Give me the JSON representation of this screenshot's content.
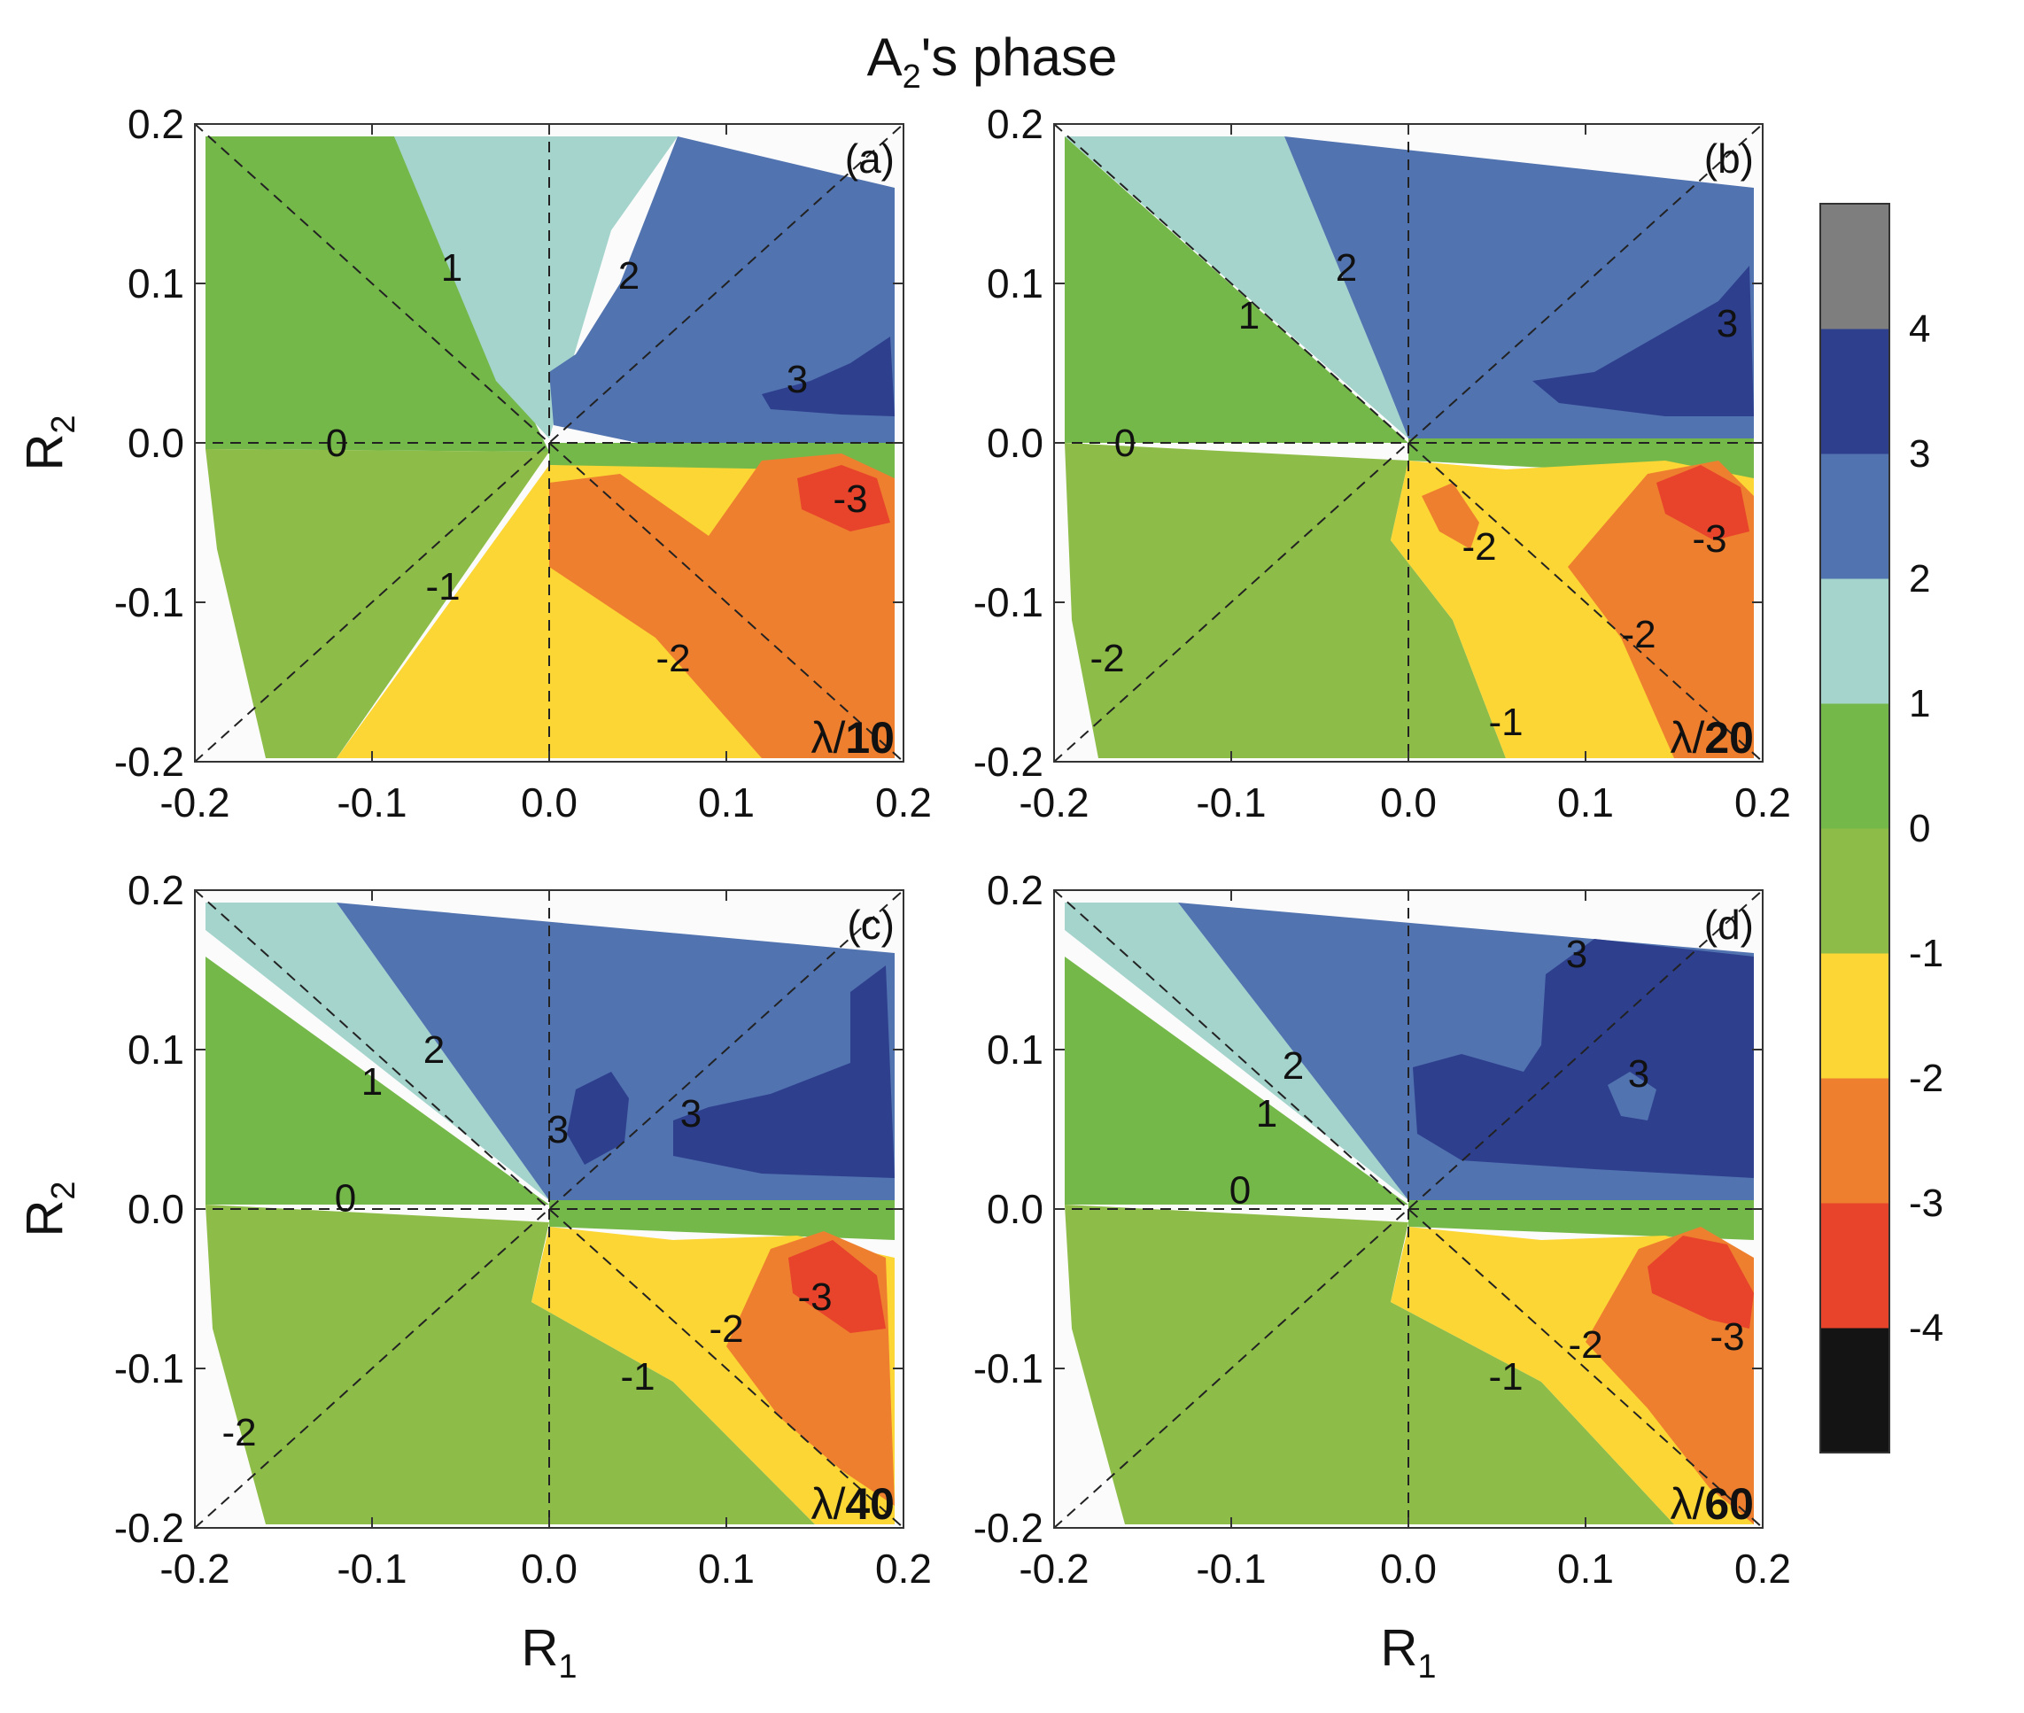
{
  "chart_data": {
    "type": "contour",
    "title_main": "A",
    "title_sub": "2",
    "title_rest": "'s phase",
    "xlabel_main": "R",
    "xlabel_sub": "1",
    "ylabel_main": "R",
    "ylabel_sub": "2",
    "xlim": [
      -0.2,
      0.2
    ],
    "ylim": [
      -0.2,
      0.2
    ],
    "xticks": [
      "-0.2",
      "-0.1",
      "0.0",
      "0.1",
      "0.2"
    ],
    "yticks": [
      "-0.2",
      "-0.1",
      "0.0",
      "0.1",
      "0.2"
    ],
    "colorbar": {
      "levels": [
        -4,
        -3,
        -2,
        -1,
        0,
        1,
        2,
        3,
        4,
        5
      ],
      "ticks": [
        "-4",
        "-3",
        "-2",
        "-1",
        "0",
        "1",
        "2",
        "3",
        "4"
      ],
      "colors": [
        "#141414",
        "#e8432b",
        "#ee7f2f",
        "#fcd634",
        "#8dbd48",
        "#75b84a",
        "#a4d4cc",
        "#5173b0",
        "#2e3f8e",
        "#7e7e7e"
      ]
    },
    "panels": [
      {
        "id": "a",
        "label": "(a)",
        "wl_prefix": "λ/",
        "wl_value": "10",
        "contour_labels": [
          {
            "text": "1",
            "x": -0.055,
            "y": 0.11
          },
          {
            "text": "2",
            "x": 0.045,
            "y": 0.105
          },
          {
            "text": "3",
            "x": 0.14,
            "y": 0.04
          },
          {
            "text": "0",
            "x": -0.12,
            "y": 0.0
          },
          {
            "text": "-1",
            "x": -0.06,
            "y": -0.09
          },
          {
            "text": "-2",
            "x": 0.07,
            "y": -0.135
          },
          {
            "text": "-3",
            "x": 0.17,
            "y": -0.035
          }
        ]
      },
      {
        "id": "b",
        "label": "(b)",
        "wl_prefix": "λ/",
        "wl_value": "20",
        "contour_labels": [
          {
            "text": "1",
            "x": -0.09,
            "y": 0.08
          },
          {
            "text": "2",
            "x": -0.035,
            "y": 0.11
          },
          {
            "text": "3",
            "x": 0.18,
            "y": 0.075
          },
          {
            "text": "0",
            "x": -0.16,
            "y": 0.0
          },
          {
            "text": "-2",
            "x": -0.17,
            "y": -0.135
          },
          {
            "text": "-2",
            "x": 0.04,
            "y": -0.065
          },
          {
            "text": "-2",
            "x": 0.13,
            "y": -0.12
          },
          {
            "text": "-3",
            "x": 0.17,
            "y": -0.06
          },
          {
            "text": "-1",
            "x": 0.055,
            "y": -0.175
          }
        ]
      },
      {
        "id": "c",
        "label": "(c)",
        "wl_prefix": "λ/",
        "wl_value": "40",
        "contour_labels": [
          {
            "text": "1",
            "x": -0.1,
            "y": 0.08
          },
          {
            "text": "2",
            "x": -0.065,
            "y": 0.1
          },
          {
            "text": "3",
            "x": 0.005,
            "y": 0.05
          },
          {
            "text": "3",
            "x": 0.08,
            "y": 0.06
          },
          {
            "text": "0",
            "x": -0.115,
            "y": 0.007
          },
          {
            "text": "-1",
            "x": 0.05,
            "y": -0.105
          },
          {
            "text": "-2",
            "x": 0.1,
            "y": -0.075
          },
          {
            "text": "-3",
            "x": 0.15,
            "y": -0.055
          },
          {
            "text": "-2",
            "x": -0.175,
            "y": -0.14
          }
        ]
      },
      {
        "id": "d",
        "label": "(d)",
        "wl_prefix": "λ/",
        "wl_value": "60",
        "contour_labels": [
          {
            "text": "1",
            "x": -0.08,
            "y": 0.06
          },
          {
            "text": "2",
            "x": -0.065,
            "y": 0.09
          },
          {
            "text": "3",
            "x": 0.095,
            "y": 0.16
          },
          {
            "text": "3",
            "x": 0.13,
            "y": 0.085
          },
          {
            "text": "0",
            "x": -0.095,
            "y": 0.012
          },
          {
            "text": "-1",
            "x": 0.055,
            "y": -0.105
          },
          {
            "text": "-2",
            "x": 0.1,
            "y": -0.085
          },
          {
            "text": "-3",
            "x": 0.18,
            "y": -0.08
          }
        ]
      }
    ]
  }
}
